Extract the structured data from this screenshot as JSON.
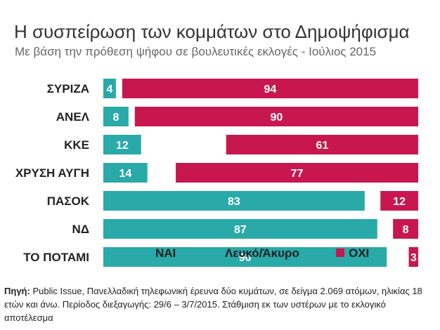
{
  "title": "Η συσπείρωση των κομμάτων στο Δημοψήφισμα",
  "subtitle": "Με βάση την πρόθεση ψήφου σε βουλευτικές εκλογές - Ιούλιος 2015",
  "chart_data": {
    "type": "bar",
    "orientation": "horizontal-stacked",
    "categories": [
      "ΣΥΡΙΖΑ",
      "ΑΝΕΛ",
      "ΚΚΕ",
      "ΧΡΥΣΗ ΑΥΓΗ",
      "ΠΑΣΟΚ",
      "ΝΔ",
      "ΤΟ ΠΟΤΑΜΙ"
    ],
    "series": [
      {
        "name": "ΝΑΙ",
        "values": [
          4,
          8,
          12,
          14,
          83,
          87,
          90
        ],
        "color": "#2aa9a9"
      },
      {
        "name": "Λευκό/Άκυρο",
        "values": [
          2,
          2,
          27,
          9,
          5,
          5,
          7
        ],
        "color": "#ffffff"
      },
      {
        "name": "ΟΧΙ",
        "values": [
          94,
          90,
          61,
          77,
          12,
          8,
          3
        ],
        "color": "#c8174f"
      }
    ],
    "xlim": [
      0,
      100
    ],
    "legend": "bottom",
    "grid": false
  },
  "footnote": {
    "label": "Πηγή:",
    "text": " Public Issue, Πανελλαδική τηλεφωνική έρευνα δύο κυμάτων, σε δείγμα 2.069 ατόμων, ηλικίας 18 ετών και άνω. Περίοδος διεξαγωγής: 29/6 – 3/7/2015. Στάθμιση εκ των υστέρων με το εκλογικό αποτέλεσμα"
  }
}
